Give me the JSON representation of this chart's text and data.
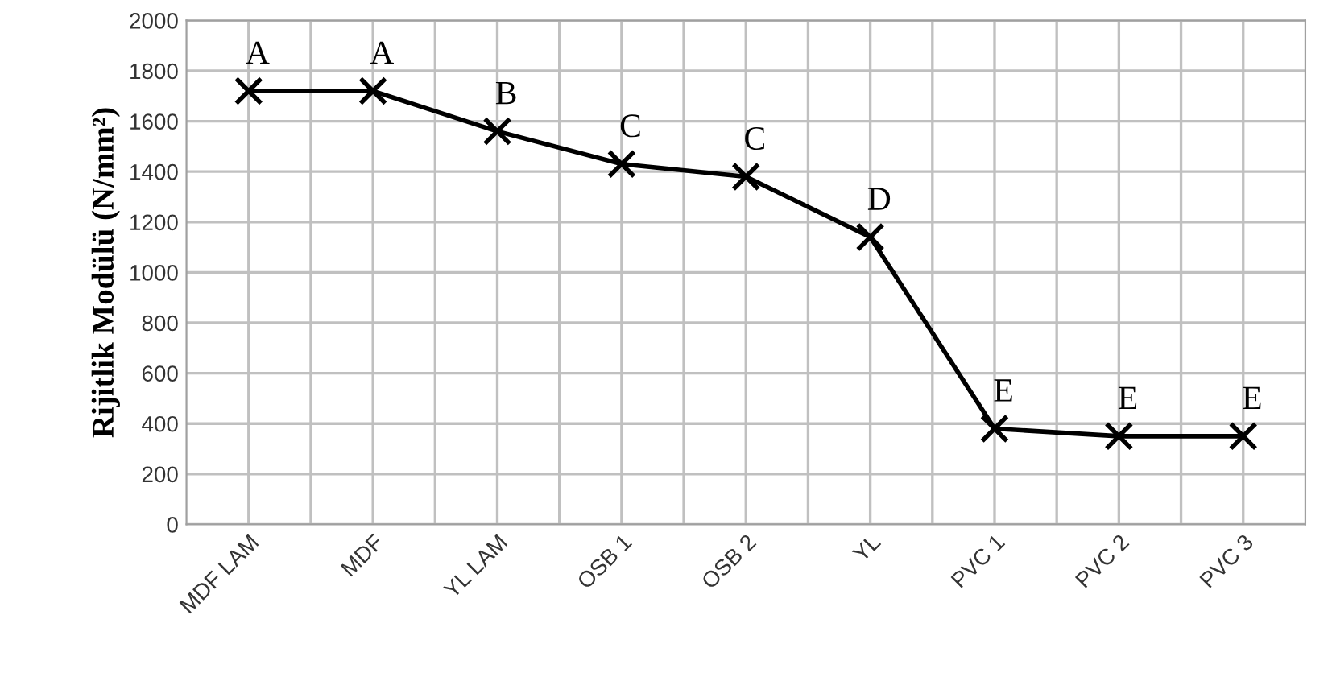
{
  "chart_data": {
    "type": "line",
    "ylabel": "Rijitlik Modülü (N/mm²)",
    "categories": [
      "MDF LAM",
      "MDF",
      "YL LAM",
      "OSB 1",
      "OSB 2",
      "YL",
      "PVC 1",
      "PVC 2",
      "PVC 3"
    ],
    "series": [
      {
        "color": "#000000",
        "values": [
          1720,
          1720,
          1560,
          1430,
          1380,
          1140,
          380,
          350,
          350
        ]
      }
    ],
    "ylim": [
      0,
      2000
    ],
    "yticks": [
      0,
      200,
      400,
      600,
      800,
      1000,
      1200,
      1400,
      1600,
      1800,
      2000
    ],
    "grid": true,
    "marker": "cross",
    "line_style": "solid",
    "legend": false,
    "annotations": [
      {
        "text": "A",
        "x": "MDF LAM",
        "y": 1720
      },
      {
        "text": "A",
        "x": "MDF",
        "y": 1720
      },
      {
        "text": "B",
        "x": "YL LAM",
        "y": 1560
      },
      {
        "text": "C",
        "x": "OSB 1",
        "y": 1430
      },
      {
        "text": "C",
        "x": "OSB 2",
        "y": 1380
      },
      {
        "text": "D",
        "x": "YL",
        "y": 1140
      },
      {
        "text": "E",
        "x": "PVC 1",
        "y": 380
      },
      {
        "text": "E",
        "x": "PVC 2",
        "y": 350
      },
      {
        "text": "E",
        "x": "PVC 3",
        "y": 350
      }
    ]
  }
}
